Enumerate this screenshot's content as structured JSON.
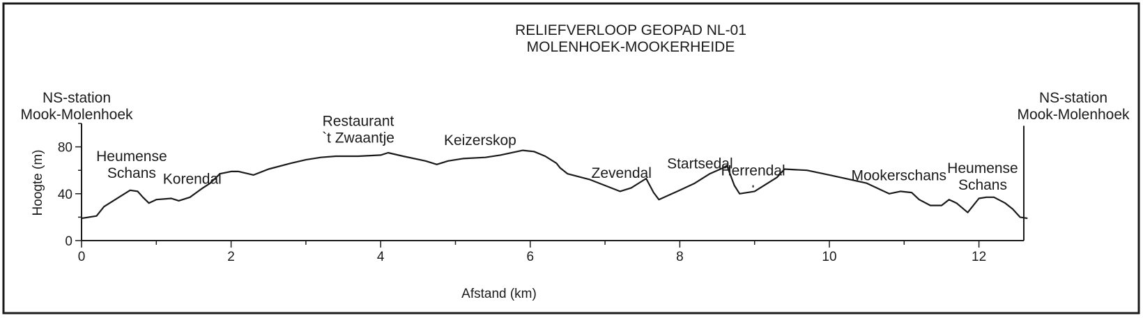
{
  "chart_data": {
    "type": "line",
    "title": [
      "RELIEFVERLOOP GEOPAD NL-01",
      "MOLENHOEK-MOOKERHEIDE"
    ],
    "xlabel": "Afstand (km)",
    "ylabel": "Hoogte (m)",
    "xlim": [
      0,
      12.6
    ],
    "ylim": [
      0,
      100
    ],
    "xticks": [
      0,
      2,
      4,
      6,
      8,
      10,
      12
    ],
    "yticks": [
      0,
      40,
      80
    ],
    "grid": false,
    "x": [
      0,
      0.2,
      0.3,
      0.5,
      0.65,
      0.75,
      0.82,
      0.9,
      1.0,
      1.2,
      1.3,
      1.45,
      1.6,
      1.72,
      1.85,
      2.0,
      2.1,
      2.3,
      2.5,
      2.8,
      3.0,
      3.2,
      3.4,
      3.7,
      4.0,
      4.1,
      4.3,
      4.6,
      4.75,
      4.9,
      5.1,
      5.4,
      5.6,
      5.9,
      6.05,
      6.2,
      6.35,
      6.4,
      6.5,
      6.8,
      7.0,
      7.2,
      7.35,
      7.55,
      7.65,
      7.72,
      8.0,
      8.2,
      8.4,
      8.58,
      8.63,
      8.73,
      8.8,
      9.0,
      9.3,
      9.4,
      9.7,
      10.0,
      10.5,
      10.8,
      10.95,
      11.1,
      11.2,
      11.35,
      11.5,
      11.6,
      11.7,
      11.85,
      12.0,
      12.1,
      12.2,
      12.35,
      12.45,
      12.55,
      12.65
    ],
    "y": [
      19,
      21,
      29,
      37,
      43,
      42,
      37,
      32,
      35,
      36,
      34,
      37,
      44,
      49,
      57,
      59,
      59,
      56,
      61,
      66,
      69,
      71,
      72,
      72,
      73,
      75,
      72,
      68,
      65,
      68,
      70,
      71,
      73,
      77,
      76,
      72,
      66,
      62,
      57,
      52,
      47,
      42,
      45,
      53,
      41,
      35,
      43,
      49,
      57,
      62,
      64,
      47,
      40,
      42,
      54,
      61,
      60,
      56,
      49,
      40,
      42,
      41,
      35,
      30,
      30,
      35,
      32,
      24,
      36,
      37,
      37,
      32,
      27,
      20,
      19
    ],
    "annotations": [
      {
        "text": [
          "NS-station",
          "Mook-Molenhoek"
        ],
        "x": 0,
        "y": 100
      },
      {
        "text": [
          "Heumense",
          "Schans"
        ],
        "x": 0.67,
        "y": 50
      },
      {
        "text": [
          "Korendal"
        ],
        "x": 1.48,
        "y": 45
      },
      {
        "text": [
          "Restaurant",
          "`t Zwaantje"
        ],
        "x": 3.7,
        "y": 80
      },
      {
        "text": [
          "Keizerskop"
        ],
        "x": 5.33,
        "y": 78
      },
      {
        "text": [
          "Zevendal"
        ],
        "x": 7.22,
        "y": 50
      },
      {
        "text": [
          "Startsedal"
        ],
        "x": 8.27,
        "y": 58
      },
      {
        "text": [
          "Herrendal"
        ],
        "x": 8.98,
        "y": 52
      },
      {
        "text": [
          "Mookerschans"
        ],
        "x": 10.93,
        "y": 48
      },
      {
        "text": [
          "Heumense",
          "Schans"
        ],
        "x": 12.05,
        "y": 40
      },
      {
        "text": [
          "NS-station",
          "Mook-Molenhoek"
        ],
        "x": 12.6,
        "y": 100
      }
    ]
  }
}
